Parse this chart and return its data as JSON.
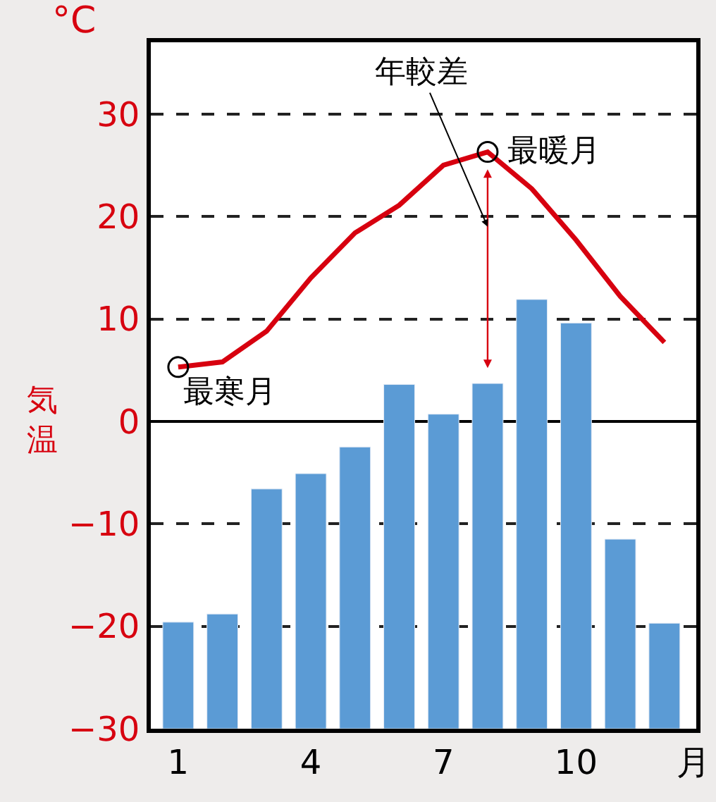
{
  "chart_data": {
    "type": "bar",
    "categories": [
      "1",
      null,
      null,
      "4",
      null,
      null,
      "7",
      null,
      null,
      "10",
      null,
      null
    ],
    "xlabel": "月",
    "ylabel": "気温",
    "series": [
      {
        "color": "#5b9bd5",
        "base": [
          -30,
          -30,
          -30,
          -30,
          -30,
          -30,
          -30,
          -30,
          -30,
          -30,
          -30,
          -30
        ],
        "values": [
          10.4,
          11.2,
          23.4,
          24.9,
          27.5,
          33.6,
          30.7,
          33.7,
          41.9,
          39.6,
          18.5,
          10.3
        ]
      },
      {
        "type": "line",
        "color": "#d7000f",
        "values": [
          5.3,
          5.8,
          8.8,
          14.0,
          18.4,
          21.1,
          25.0,
          26.3,
          22.7,
          17.7,
          12.2,
          7.7
        ]
      }
    ],
    "ylim": [
      -30,
      37
    ],
    "yticks": [
      -30,
      -20,
      -10,
      0,
      10,
      20,
      30
    ],
    "grid": "y",
    "line_style": "solid",
    "annotations": [
      "°C",
      "最寒月",
      "最暖月",
      "年較差"
    ]
  }
}
